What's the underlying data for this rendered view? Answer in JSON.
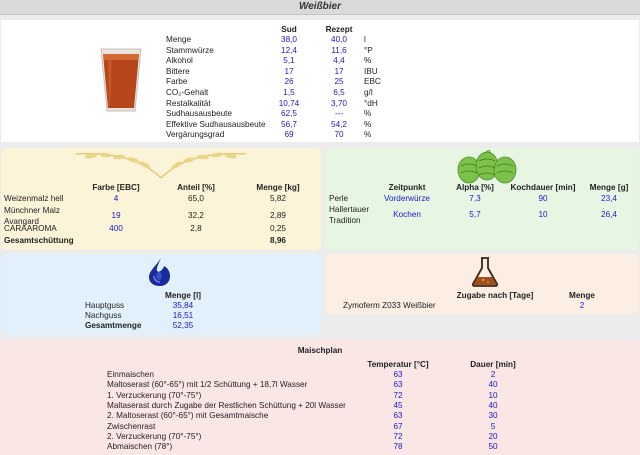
{
  "title": "Weißbier",
  "colors": {
    "malt_bg": "#fbf4d9",
    "hops_bg": "#e6f6e2",
    "water_bg": "#e2f0fb",
    "yeast_bg": "#fceee2",
    "mash_bg": "#fbe6e6",
    "value_blue": "#1a1acc"
  },
  "summary": {
    "headers": {
      "sud": "Sud",
      "rezept": "Rezept"
    },
    "rows": [
      {
        "label": "Menge",
        "sud": "38,0",
        "rezept": "40,0",
        "unit": "l"
      },
      {
        "label": "Stammwürze",
        "sud": "12,4",
        "rezept": "11,6",
        "unit": "°P"
      },
      {
        "label": "Alkohol",
        "sud": "5,1",
        "rezept": "4,4",
        "unit": "%"
      },
      {
        "label": "Bittere",
        "sud": "17",
        "rezept": "17",
        "unit": "IBU"
      },
      {
        "label": "Farbe",
        "sud": "26",
        "rezept": "25",
        "unit": "EBC"
      },
      {
        "label": "CO₂-Gehalt",
        "sud": "1,5",
        "rezept": "6,5",
        "unit": "g/l"
      },
      {
        "label": "Restalkalität",
        "sud": "10,74",
        "rezept": "3,70",
        "unit": "°dH"
      },
      {
        "label": "Sudhausausbeute",
        "sud": "62,5",
        "rezept": "---",
        "unit": "%"
      },
      {
        "label": "Effektive Sudhausausbeute",
        "sud": "56,7",
        "rezept": "54,2",
        "unit": "%"
      },
      {
        "label": "Vergärungsgrad",
        "sud": "69",
        "rezept": "70",
        "unit": "%"
      }
    ]
  },
  "malt": {
    "icon": "wheat-icon",
    "headers": {
      "color": "Farbe [EBC]",
      "share": "Anteil [%]",
      "amount": "Menge [kg]"
    },
    "rows": [
      {
        "name": "Weizenmalz hell",
        "color": "4",
        "share": "65,0",
        "amount": "5,82"
      },
      {
        "name": "Münchner Malz Avangard",
        "color": "19",
        "share": "32,2",
        "amount": "2,89"
      },
      {
        "name": "CARAAROMA",
        "color": "400",
        "share": "2,8",
        "amount": "0,25"
      }
    ],
    "total_label": "Gesamtschüttung",
    "total_amount": "8,96"
  },
  "hops": {
    "icon": "hops-icon",
    "headers": {
      "time": "Zeitpunkt",
      "alpha": "Alpha [%]",
      "boil": "Kochdauer [min]",
      "amount": "Menge [g]"
    },
    "rows": [
      {
        "name": "Perle",
        "time": "Vorderwürze",
        "alpha": "7,3",
        "boil": "90",
        "amount": "23,4"
      },
      {
        "name": "Hallertauer Tradition",
        "time": "Kochen",
        "alpha": "5,7",
        "boil": "10",
        "amount": "26,4"
      }
    ]
  },
  "water": {
    "icon": "water-drop-icon",
    "header": "Menge [l]",
    "rows": [
      {
        "name": "Hauptguss",
        "amount": "35,84"
      },
      {
        "name": "Nachguss",
        "amount": "16,51"
      }
    ],
    "total_label": "Gesamtmenge",
    "total_amount": "52,35"
  },
  "yeast": {
    "icon": "flask-icon",
    "headers": {
      "add": "Zugabe nach [Tage]",
      "amount": "Menge"
    },
    "rows": [
      {
        "name": "Zymoferm Z033 Weißbier",
        "add": "",
        "amount": "2"
      }
    ]
  },
  "mash": {
    "title": "Maischplan",
    "headers": {
      "temp": "Temperatur [°C]",
      "dur": "Dauer [min]"
    },
    "rows": [
      {
        "name": "Einmaischen",
        "temp": "63",
        "dur": "2"
      },
      {
        "name": "Maltoserast (60°-65°) mit 1/2 Schüttung + 18,7l Wasser",
        "temp": "63",
        "dur": "40"
      },
      {
        "name": "1. Verzuckerung (70°-75°)",
        "temp": "72",
        "dur": "10"
      },
      {
        "name": "Maltaserast durch Zugabe der Restlichen Schüttung + 20l Wasser",
        "temp": "45",
        "dur": "40"
      },
      {
        "name": "2. Maltoserast (60°-65°) mit Gesamtmaische",
        "temp": "63",
        "dur": "30"
      },
      {
        "name": "Zwischenrast",
        "temp": "67",
        "dur": "5"
      },
      {
        "name": "2. Verzuckerung (70°-75°)",
        "temp": "72",
        "dur": "20"
      },
      {
        "name": "Abmaischen (78°)",
        "temp": "78",
        "dur": "50"
      }
    ]
  }
}
